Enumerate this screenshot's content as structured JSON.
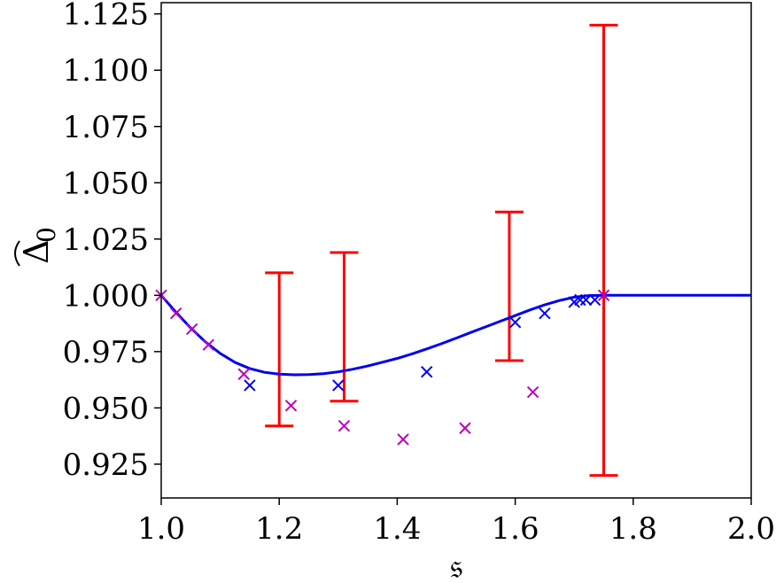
{
  "chart_data": {
    "type": "scatter",
    "xlabel": "𝔰",
    "ylabel_symbol": "Δ",
    "ylabel_subscript": "0",
    "xlim": [
      1.0,
      2.0
    ],
    "ylim": [
      0.91,
      1.13
    ],
    "x_ticks": [
      {
        "value": 1.0,
        "label": "1.0"
      },
      {
        "value": 1.2,
        "label": "1.2"
      },
      {
        "value": 1.4,
        "label": "1.4"
      },
      {
        "value": 1.6,
        "label": "1.6"
      },
      {
        "value": 1.8,
        "label": "1.8"
      },
      {
        "value": 2.0,
        "label": "2.0"
      }
    ],
    "y_ticks": [
      {
        "value": 0.925,
        "label": "0.925"
      },
      {
        "value": 0.95,
        "label": "0.950"
      },
      {
        "value": 0.975,
        "label": "0.975"
      },
      {
        "value": 1.0,
        "label": "1.000"
      },
      {
        "value": 1.025,
        "label": "1.025"
      },
      {
        "value": 1.05,
        "label": "1.050"
      },
      {
        "value": 1.075,
        "label": "1.075"
      },
      {
        "value": 1.1,
        "label": "1.100"
      },
      {
        "value": 1.125,
        "label": "1.125"
      }
    ],
    "curve": {
      "color": "#0000ee",
      "x": [
        1.0,
        1.025,
        1.05,
        1.075,
        1.1,
        1.125,
        1.15,
        1.175,
        1.2,
        1.225,
        1.25,
        1.275,
        1.3,
        1.325,
        1.35,
        1.375,
        1.4,
        1.425,
        1.45,
        1.475,
        1.5,
        1.525,
        1.55,
        1.575,
        1.6,
        1.625,
        1.65,
        1.675,
        1.7,
        1.725,
        1.75,
        2.0
      ],
      "y": [
        1.0,
        0.9925,
        0.9855,
        0.9793,
        0.9742,
        0.9702,
        0.9675,
        0.9658,
        0.965,
        0.9647,
        0.9648,
        0.9652,
        0.966,
        0.9672,
        0.9686,
        0.9703,
        0.972,
        0.974,
        0.9762,
        0.9785,
        0.981,
        0.9835,
        0.986,
        0.9885,
        0.991,
        0.9935,
        0.9958,
        0.9977,
        0.9992,
        0.9999,
        1.0,
        1.0
      ]
    },
    "series": [
      {
        "color": "#0000ee",
        "marker": "x",
        "x": [
          1.15,
          1.3,
          1.45,
          1.6,
          1.65,
          1.7,
          1.71,
          1.72,
          1.735
        ],
        "y": [
          0.96,
          0.96,
          0.966,
          0.988,
          0.992,
          0.997,
          0.998,
          0.998,
          0.998
        ]
      },
      {
        "color": "#bb00bb",
        "marker": "x",
        "x": [
          1.0,
          1.025,
          1.052,
          1.08,
          1.14,
          1.22,
          1.31,
          1.41,
          1.515,
          1.63,
          1.75
        ],
        "y": [
          1.0,
          0.992,
          0.985,
          0.978,
          0.965,
          0.951,
          0.942,
          0.936,
          0.941,
          0.957,
          1.0
        ]
      }
    ],
    "errorbars": {
      "color": "#ff0000",
      "x": [
        1.2,
        1.31,
        1.59,
        1.75
      ],
      "lower": [
        0.942,
        0.953,
        0.971,
        0.92
      ],
      "upper": [
        1.01,
        1.019,
        1.037,
        1.12
      ]
    }
  }
}
